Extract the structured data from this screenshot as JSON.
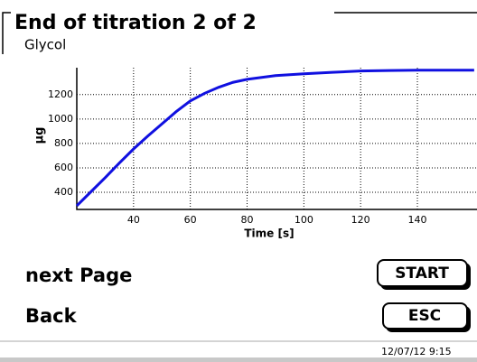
{
  "header": {
    "title": "End of titration 2 of 2",
    "subtitle": "Glycol"
  },
  "chart_data": {
    "type": "line",
    "x_label": "Time [s]",
    "y_label": "µg",
    "x": [
      20,
      25,
      30,
      35,
      40,
      45,
      50,
      55,
      60,
      65,
      70,
      75,
      80,
      90,
      100,
      110,
      120,
      130,
      140,
      150,
      160
    ],
    "series": [
      {
        "color": "#1010e0",
        "values": [
          290,
          405,
          520,
          640,
          755,
          860,
          960,
          1060,
          1148,
          1210,
          1260,
          1300,
          1325,
          1355,
          1370,
          1382,
          1393,
          1397,
          1400,
          1400,
          1400
        ]
      }
    ],
    "xlim": [
      20,
      161
    ],
    "xticks": [
      40,
      60,
      80,
      100,
      120,
      140
    ],
    "ylim": [
      260,
      1420
    ],
    "yticks": [
      400,
      600,
      800,
      1000,
      1200
    ],
    "grid": true
  },
  "actions": [
    {
      "label": "next Page",
      "button": "START"
    },
    {
      "label": "Back",
      "button": "ESC"
    }
  ],
  "footer": {
    "datetime": "12/07/12 9:15"
  }
}
